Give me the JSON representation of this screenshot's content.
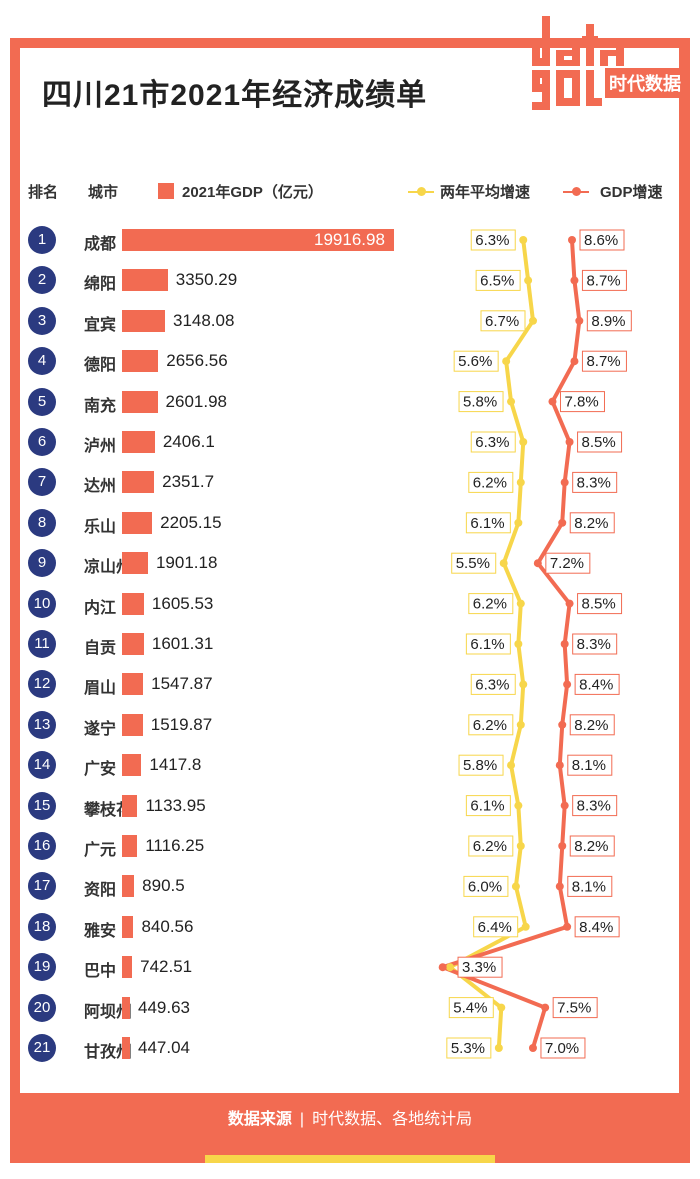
{
  "title": "四川21市2021年经济成绩单",
  "logo": {
    "word": "data",
    "text": "时代数据"
  },
  "headers": {
    "rank": "排名",
    "city": "城市",
    "gdp_legend": "2021年GDP（亿元）",
    "avg_legend": "两年平均增速",
    "growth_legend": "GDP增速"
  },
  "colors": {
    "bar": "#f26b52",
    "avg_line": "#f7d64a",
    "growth_line": "#f26b52",
    "badge": "#2b3a80"
  },
  "chart_data": {
    "type": "table",
    "columns": [
      "排名",
      "城市",
      "2021年GDP（亿元）",
      "两年平均增速",
      "GDP增速"
    ],
    "rows": [
      {
        "rank": "1",
        "city": "成都",
        "gdp": 19916.98,
        "gdp_label": "19916.98",
        "avg": 6.3,
        "avg_label": "6.3%",
        "growth": 8.6,
        "growth_label": "8.6%"
      },
      {
        "rank": "2",
        "city": "绵阳",
        "gdp": 3350.29,
        "gdp_label": "3350.29",
        "avg": 6.5,
        "avg_label": "6.5%",
        "growth": 8.7,
        "growth_label": "8.7%"
      },
      {
        "rank": "3",
        "city": "宜宾",
        "gdp": 3148.08,
        "gdp_label": "3148.08",
        "avg": 6.7,
        "avg_label": "6.7%",
        "growth": 8.9,
        "growth_label": "8.9%"
      },
      {
        "rank": "4",
        "city": "德阳",
        "gdp": 2656.56,
        "gdp_label": "2656.56",
        "avg": 5.6,
        "avg_label": "5.6%",
        "growth": 8.7,
        "growth_label": "8.7%"
      },
      {
        "rank": "5",
        "city": "南充",
        "gdp": 2601.98,
        "gdp_label": "2601.98",
        "avg": 5.8,
        "avg_label": "5.8%",
        "growth": 7.8,
        "growth_label": "7.8%"
      },
      {
        "rank": "6",
        "city": "泸州",
        "gdp": 2406.1,
        "gdp_label": "2406.1",
        "avg": 6.3,
        "avg_label": "6.3%",
        "growth": 8.5,
        "growth_label": "8.5%"
      },
      {
        "rank": "7",
        "city": "达州",
        "gdp": 2351.7,
        "gdp_label": "2351.7",
        "avg": 6.2,
        "avg_label": "6.2%",
        "growth": 8.3,
        "growth_label": "8.3%"
      },
      {
        "rank": "8",
        "city": "乐山",
        "gdp": 2205.15,
        "gdp_label": "2205.15",
        "avg": 6.1,
        "avg_label": "6.1%",
        "growth": 8.2,
        "growth_label": "8.2%"
      },
      {
        "rank": "9",
        "city": "凉山州",
        "gdp": 1901.18,
        "gdp_label": "1901.18",
        "avg": 5.5,
        "avg_label": "5.5%",
        "growth": 7.2,
        "growth_label": "7.2%"
      },
      {
        "rank": "10",
        "city": "内江",
        "gdp": 1605.53,
        "gdp_label": "1605.53",
        "avg": 6.2,
        "avg_label": "6.2%",
        "growth": 8.5,
        "growth_label": "8.5%"
      },
      {
        "rank": "11",
        "city": "自贡",
        "gdp": 1601.31,
        "gdp_label": "1601.31",
        "avg": 6.1,
        "avg_label": "6.1%",
        "growth": 8.3,
        "growth_label": "8.3%"
      },
      {
        "rank": "12",
        "city": "眉山",
        "gdp": 1547.87,
        "gdp_label": "1547.87",
        "avg": 6.3,
        "avg_label": "6.3%",
        "growth": 8.4,
        "growth_label": "8.4%"
      },
      {
        "rank": "13",
        "city": "遂宁",
        "gdp": 1519.87,
        "gdp_label": "1519.87",
        "avg": 6.2,
        "avg_label": "6.2%",
        "growth": 8.2,
        "growth_label": "8.2%"
      },
      {
        "rank": "14",
        "city": "广安",
        "gdp": 1417.8,
        "gdp_label": "1417.8",
        "avg": 5.8,
        "avg_label": "5.8%",
        "growth": 8.1,
        "growth_label": "8.1%"
      },
      {
        "rank": "15",
        "city": "攀枝花",
        "gdp": 1133.95,
        "gdp_label": "1133.95",
        "avg": 6.1,
        "avg_label": "6.1%",
        "growth": 8.3,
        "growth_label": "8.3%"
      },
      {
        "rank": "16",
        "city": "广元",
        "gdp": 1116.25,
        "gdp_label": "1116.25",
        "avg": 6.2,
        "avg_label": "6.2%",
        "growth": 8.2,
        "growth_label": "8.2%"
      },
      {
        "rank": "17",
        "city": "资阳",
        "gdp": 890.5,
        "gdp_label": "890.5",
        "avg": 6.0,
        "avg_label": "6.0%",
        "growth": 8.1,
        "growth_label": "8.1%"
      },
      {
        "rank": "18",
        "city": "雅安",
        "gdp": 840.56,
        "gdp_label": "840.56",
        "avg": 6.4,
        "avg_label": "6.4%",
        "growth": 8.4,
        "growth_label": "8.4%"
      },
      {
        "rank": "19",
        "city": "巴中",
        "gdp": 742.51,
        "gdp_label": "742.51",
        "avg": 3.3,
        "avg_label": "3.3%",
        "growth": 3.3,
        "growth_label": "3.3%"
      },
      {
        "rank": "20",
        "city": "阿坝州",
        "gdp": 449.63,
        "gdp_label": "449.63",
        "avg": 5.4,
        "avg_label": "5.4%",
        "growth": 7.5,
        "growth_label": "7.5%"
      },
      {
        "rank": "21",
        "city": "甘孜州",
        "gdp": 447.04,
        "gdp_label": "447.04",
        "avg": 5.3,
        "avg_label": "5.3%",
        "growth": 7.0,
        "growth_label": "7.0%"
      }
    ]
  },
  "footer": {
    "source_label": "数据来源",
    "source_text": "时代数据、各地统计局"
  }
}
